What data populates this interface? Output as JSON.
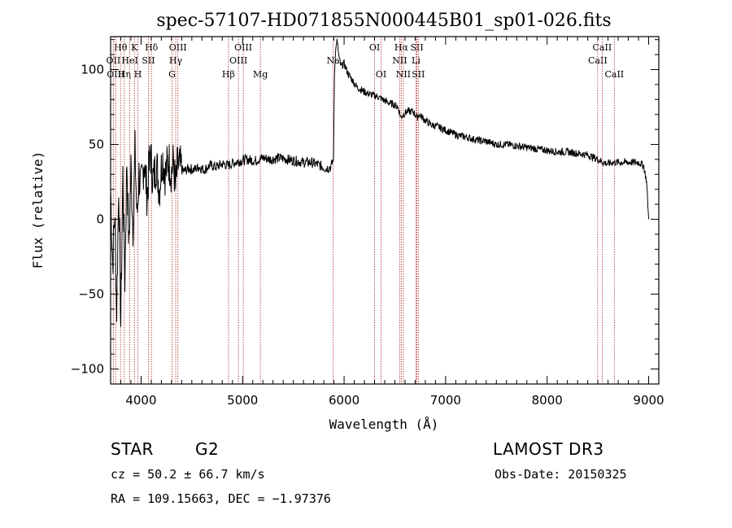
{
  "chart_data": {
    "type": "line",
    "title": "spec-57107-HD071855N000445B01_sp01-026.fits",
    "xlabel": "Wavelength (Å)",
    "ylabel": "Flux (relative)",
    "xlim": [
      3700,
      9100
    ],
    "ylim": [
      -110,
      122
    ],
    "x_ticks": [
      4000,
      5000,
      6000,
      7000,
      8000,
      9000
    ],
    "x_tick_labels": [
      "4000",
      "5000",
      "6000",
      "7000",
      "8000",
      "9000"
    ],
    "y_ticks": [
      -100,
      -50,
      0,
      50,
      100
    ],
    "y_tick_labels": [
      "−100",
      "−50",
      "0",
      "50",
      "100"
    ],
    "series": [
      {
        "name": "flux",
        "x": [
          3700,
          3720,
          3740,
          3760,
          3780,
          3800,
          3820,
          3840,
          3860,
          3880,
          3900,
          3920,
          3940,
          3960,
          3980,
          4000,
          4030,
          4060,
          4090,
          4120,
          4150,
          4180,
          4210,
          4240,
          4270,
          4300,
          4320,
          4340,
          4360,
          4380,
          4420,
          4470,
          4520,
          4570,
          4620,
          4680,
          4740,
          4800,
          4860,
          4920,
          4980,
          5050,
          5120,
          5200,
          5280,
          5360,
          5440,
          5520,
          5600,
          5680,
          5760,
          5820,
          5870,
          5895,
          5905,
          5915,
          5930,
          5950,
          5970,
          6000,
          6040,
          6080,
          6130,
          6180,
          6230,
          6280,
          6330,
          6380,
          6430,
          6480,
          6530,
          6560,
          6580,
          6620,
          6680,
          6720,
          6740,
          6800,
          6860,
          6920,
          6980,
          7050,
          7120,
          7200,
          7300,
          7400,
          7500,
          7600,
          7700,
          7800,
          7900,
          8000,
          8100,
          8200,
          8300,
          8400,
          8500,
          8550,
          8600,
          8650,
          8700,
          8800,
          8900,
          8950,
          8980,
          9000
        ],
        "y": [
          20,
          -30,
          5,
          -60,
          25,
          -70,
          30,
          -40,
          40,
          -20,
          35,
          -5,
          45,
          0,
          30,
          20,
          40,
          15,
          45,
          25,
          38,
          20,
          42,
          30,
          40,
          32,
          38,
          20,
          36,
          34,
          32,
          34,
          33,
          35,
          33,
          36,
          35,
          37,
          36,
          38,
          39,
          40,
          39,
          41,
          40,
          41,
          40,
          39,
          38,
          38,
          36,
          34,
          35,
          40,
          95,
          112,
          120,
          108,
          102,
          104,
          97,
          93,
          88,
          86,
          84,
          83,
          82,
          80,
          78,
          77,
          75,
          68,
          70,
          72,
          72,
          68,
          70,
          66,
          63,
          62,
          60,
          58,
          56,
          55,
          53,
          52,
          50,
          50,
          49,
          48,
          47,
          46,
          45,
          45,
          44,
          43,
          40,
          38,
          37,
          38,
          38,
          38,
          38,
          36,
          25,
          0
        ]
      }
    ],
    "spectral_lines": [
      {
        "label": "Hθ",
        "x": 3798,
        "row": 1
      },
      {
        "label": "OII",
        "x": 3727,
        "row": 2
      },
      {
        "label": "OIII",
        "x": 3750,
        "row": 3
      },
      {
        "label": "Hη",
        "x": 3835,
        "row": 3
      },
      {
        "label": "K",
        "x": 3934,
        "row": 1
      },
      {
        "label": "H",
        "x": 3969,
        "row": 3
      },
      {
        "label": "HeI",
        "x": 3889,
        "row": 2
      },
      {
        "label": "SII",
        "x": 4072,
        "row": 2
      },
      {
        "label": "Hδ",
        "x": 4102,
        "row": 1
      },
      {
        "label": "OIII",
        "x": 4363,
        "row": 1
      },
      {
        "label": "Hγ",
        "x": 4341,
        "row": 2
      },
      {
        "label": "G",
        "x": 4305,
        "row": 3
      },
      {
        "label": "Hβ",
        "x": 4861,
        "row": 3
      },
      {
        "label": "OIII",
        "x": 4959,
        "row": 2
      },
      {
        "label": "OIII",
        "x": 5007,
        "row": 1
      },
      {
        "label": "Mg",
        "x": 5175,
        "row": 3
      },
      {
        "label": "Na",
        "x": 5893,
        "row": 2
      },
      {
        "label": "OI",
        "x": 6300,
        "row": 1
      },
      {
        "label": "OI",
        "x": 6364,
        "row": 3
      },
      {
        "label": "Hα",
        "x": 6563,
        "row": 1
      },
      {
        "label": "NII",
        "x": 6548,
        "row": 2
      },
      {
        "label": "NII",
        "x": 6584,
        "row": 3
      },
      {
        "label": "SII",
        "x": 6717,
        "row": 1
      },
      {
        "label": "Li",
        "x": 6708,
        "row": 2
      },
      {
        "label": "SII",
        "x": 6731,
        "row": 3
      },
      {
        "label": "CaII",
        "x": 8498,
        "row": 2
      },
      {
        "label": "CaII",
        "x": 8542,
        "row": 1
      },
      {
        "label": "CaII",
        "x": 8662,
        "row": 3
      }
    ]
  },
  "info": {
    "object_class": "STAR",
    "subclass": "G2",
    "survey": "LAMOST DR3",
    "cz_line": "cz = 50.2 ± 66.7 km/s",
    "obs_date_line": "Obs-Date: 20150325",
    "coords_line": "RA = 109.15663, DEC =  −1.97376"
  },
  "colors": {
    "axis": "#000000",
    "spectrum": "#000000",
    "line_marker": "#b22222",
    "background": "#ffffff"
  }
}
